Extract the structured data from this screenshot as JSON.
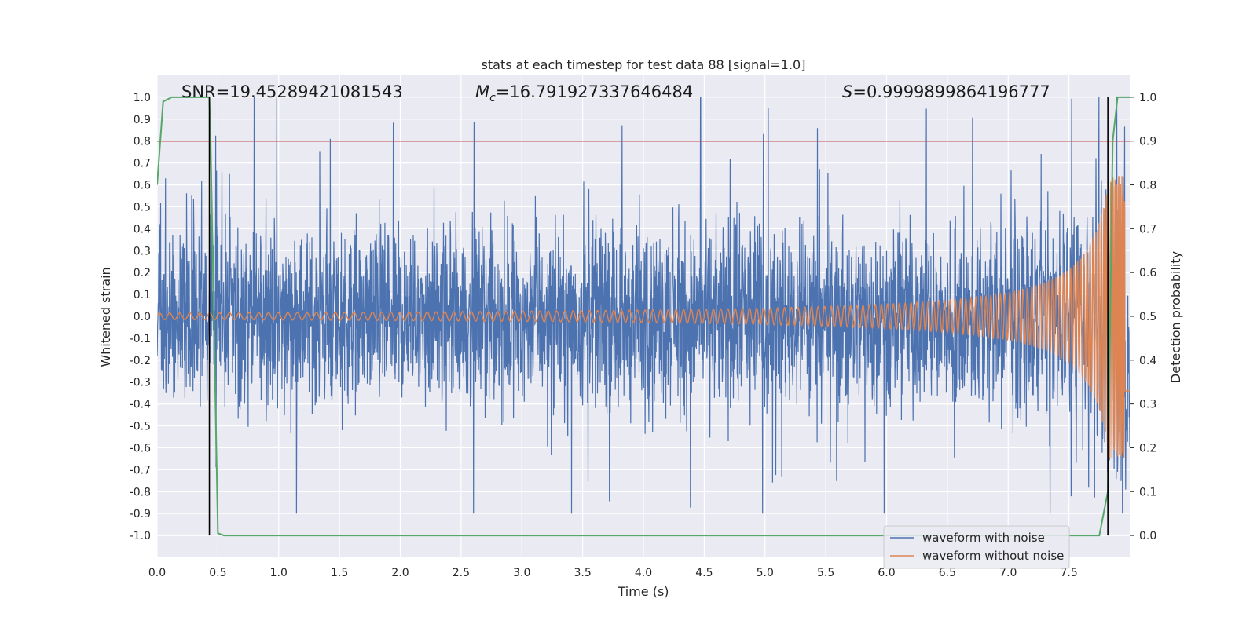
{
  "chart_data": {
    "type": "line",
    "title": "stats at each timestep for test data 88 [signal=1.0]",
    "xlabel": "Time (s)",
    "ylabel_left": "Whitened strain",
    "ylabel_right": "Detection probability",
    "xlim": [
      0.0,
      8.0
    ],
    "ylim_left": [
      -1.1,
      1.1
    ],
    "ylim_right": [
      -0.05,
      1.05
    ],
    "x_ticks": [
      "0.0",
      "0.5",
      "1.0",
      "1.5",
      "2.0",
      "2.5",
      "3.0",
      "3.5",
      "4.0",
      "4.5",
      "5.0",
      "5.5",
      "6.0",
      "6.5",
      "7.0",
      "7.5"
    ],
    "y_left_ticks": [
      "1.0",
      "0.9",
      "0.8",
      "0.7",
      "0.6",
      "0.5",
      "0.4",
      "0.3",
      "0.2",
      "0.1",
      "0.0",
      "-0.1",
      "-0.2",
      "-0.3",
      "-0.4",
      "-0.5",
      "-0.6",
      "-0.7",
      "-0.8",
      "-0.9",
      "-1.0"
    ],
    "y_right_ticks": [
      "1.0",
      "0.9",
      "0.8",
      "0.7",
      "0.6",
      "0.5",
      "0.4",
      "0.3",
      "0.2",
      "0.1",
      "0.0"
    ],
    "annotations": {
      "snr": "SNR=19.45289421081543",
      "mc_value": "=16.791927337646484",
      "s_value": "=0.9999899864196777"
    },
    "threshold": {
      "value": 0.9,
      "axis": "right",
      "color": "#c44e52"
    },
    "vertical_markers": [
      0.43,
      7.82
    ],
    "series": [
      {
        "name": "waveform with noise",
        "axis": "left",
        "color": "#4c72b0",
        "envelope": {
          "core_amplitude": 0.19,
          "typical_peak": 0.45,
          "max_peak": 1.0,
          "max_peak_time": 4.47
        }
      },
      {
        "name": "waveform without noise",
        "axis": "left",
        "color": "#dd8452",
        "description_shape": "chirp",
        "start_frequency_hz": 12,
        "start_amplitude": 0.015,
        "end_amplitude": 0.65,
        "merger_time": 7.98
      },
      {
        "name": "detection probability",
        "axis": "right",
        "color": "#55a868",
        "x": [
          0.0,
          0.05,
          0.12,
          0.43,
          0.44,
          0.5,
          0.55,
          7.75,
          7.82,
          7.86,
          7.9,
          8.0
        ],
        "y": [
          0.8,
          0.99,
          1.0,
          1.0,
          0.9,
          0.005,
          0.0,
          0.0,
          0.1,
          0.9,
          1.0,
          1.0
        ]
      }
    ],
    "legend": {
      "placement": "lower-right",
      "entries": [
        "waveform with noise",
        "waveform without noise"
      ]
    }
  }
}
